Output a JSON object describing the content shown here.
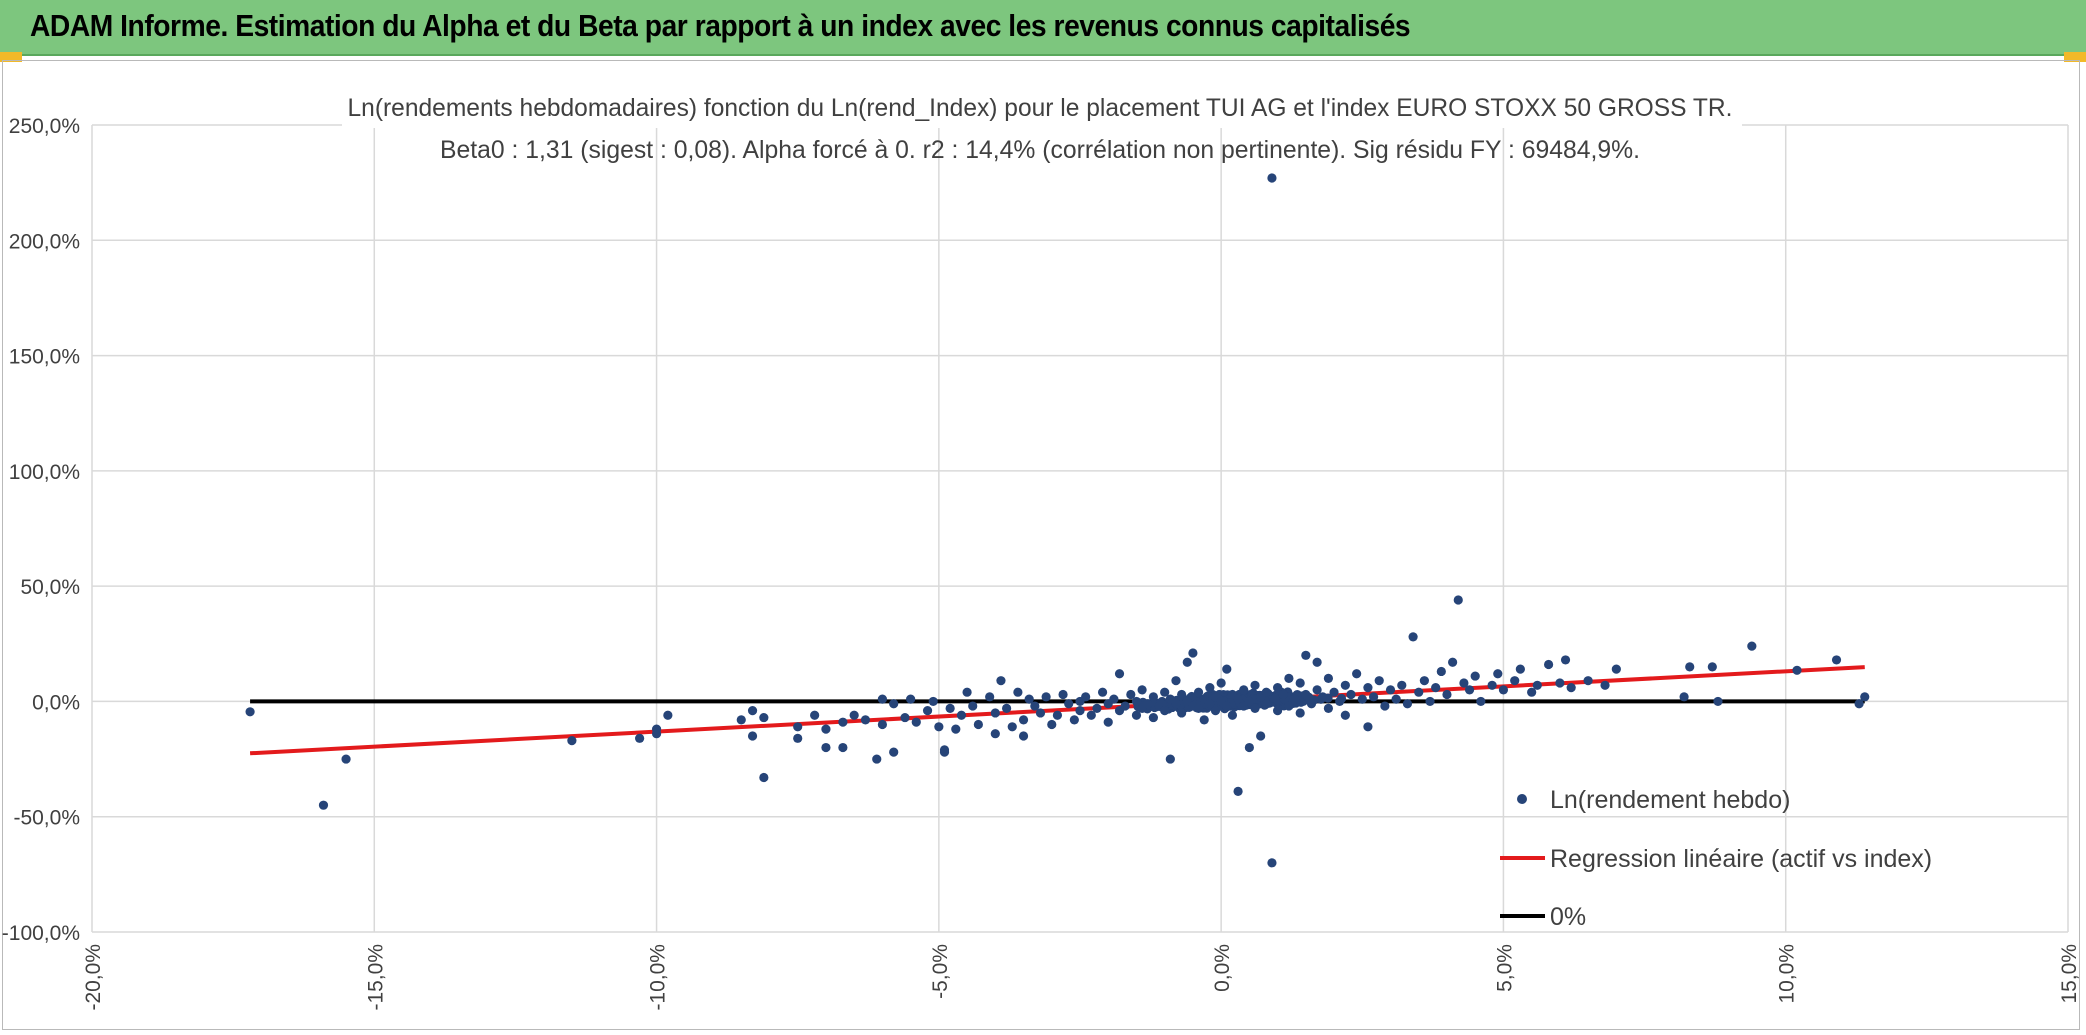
{
  "header": {
    "title": "ADAM Informe. Estimation du Alpha et du Beta par rapport à un index avec les revenus connus capitalisés"
  },
  "colors": {
    "banner": "#7dc67e",
    "points": "#264478",
    "regression": "#e31a1c",
    "zero_line": "#000000",
    "grid": "#d9d9d9",
    "corner_accent": "#f2b928"
  },
  "chart_data": {
    "type": "scatter",
    "title_line1": "Ln(rendements hebdomadaires) fonction du Ln(rend_Index) pour le placement TUI AG et l'index EURO STOXX 50 GROSS TR.",
    "title_line2": "Beta0 : 1,31 (sigest : 0,08). Alpha forcé à 0. r2 : 14,4% (corrélation non pertinente). Sig résidu FY : 69484,9%.",
    "xlabel": "",
    "ylabel": "",
    "xlim": [
      -20,
      15
    ],
    "ylim": [
      -100,
      250
    ],
    "x_ticks": [
      -20,
      -15,
      -10,
      -5,
      0,
      5,
      10,
      15
    ],
    "y_ticks": [
      -100,
      -50,
      0,
      50,
      100,
      150,
      200,
      250
    ],
    "x_tick_labels": [
      "-20,0%",
      "-15,0%",
      "-10,0%",
      "-5,0%",
      "0,0%",
      "5,0%",
      "10,0%",
      "15,0%"
    ],
    "y_tick_labels": [
      "-100,0%",
      "-50,0%",
      "0,0%",
      "50,0%",
      "100,0%",
      "150,0%",
      "200,0%",
      "250,0%"
    ],
    "grid": true,
    "legend_position": "bottom-right",
    "series": [
      {
        "name": "Ln(rendement hebdo)",
        "kind": "scatter",
        "points": [
          [
            -17.2,
            -4.5
          ],
          [
            -15.9,
            -45.0
          ],
          [
            -15.5,
            -25.0
          ],
          [
            -11.5,
            -17.0
          ],
          [
            -10.3,
            -16.0
          ],
          [
            -10.0,
            -14.0
          ],
          [
            -10.0,
            -12.0
          ],
          [
            -9.8,
            -6.0
          ],
          [
            -8.5,
            -8.0
          ],
          [
            -8.3,
            -4.0
          ],
          [
            -8.3,
            -15.0
          ],
          [
            -8.1,
            -7.0
          ],
          [
            -8.1,
            -33.0
          ],
          [
            -7.5,
            -11.0
          ],
          [
            -7.5,
            -16.0
          ],
          [
            -7.2,
            -6.0
          ],
          [
            -7.0,
            -20.0
          ],
          [
            -7.0,
            -12.0
          ],
          [
            -6.7,
            -9.0
          ],
          [
            -6.7,
            -20.0
          ],
          [
            -6.5,
            -6.0
          ],
          [
            -6.3,
            -8.0
          ],
          [
            -6.1,
            -25.0
          ],
          [
            -6.0,
            -10.0
          ],
          [
            -6.0,
            1.0
          ],
          [
            -5.8,
            -1.0
          ],
          [
            -5.8,
            -22.0
          ],
          [
            -5.6,
            -7.0
          ],
          [
            -5.5,
            1.0
          ],
          [
            -5.4,
            -9.0
          ],
          [
            -5.2,
            -4.0
          ],
          [
            -5.1,
            0.0
          ],
          [
            -5.0,
            -11.0
          ],
          [
            -4.9,
            -21.0
          ],
          [
            -4.9,
            -22.0
          ],
          [
            -4.8,
            -3.0
          ],
          [
            -4.7,
            -12.0
          ],
          [
            -4.6,
            -6.0
          ],
          [
            -4.5,
            4.0
          ],
          [
            -4.4,
            -2.0
          ],
          [
            -4.3,
            -10.0
          ],
          [
            -4.1,
            2.0
          ],
          [
            -4.0,
            -14.0
          ],
          [
            -4.0,
            -5.0
          ],
          [
            -3.9,
            9.0
          ],
          [
            -3.8,
            -3.0
          ],
          [
            -3.7,
            -11.0
          ],
          [
            -3.6,
            4.0
          ],
          [
            -3.5,
            -15.0
          ],
          [
            -3.5,
            -8.0
          ],
          [
            -3.4,
            1.0
          ],
          [
            -3.3,
            -2.0
          ],
          [
            -3.2,
            -5.0
          ],
          [
            -3.1,
            2.0
          ],
          [
            -3.0,
            -10.0
          ],
          [
            -2.9,
            -6.0
          ],
          [
            -2.8,
            3.0
          ],
          [
            -2.7,
            -1.0
          ],
          [
            -2.6,
            -8.0
          ],
          [
            -2.5,
            0.0
          ],
          [
            -2.5,
            -4.0
          ],
          [
            -2.4,
            2.0
          ],
          [
            -2.3,
            -6.0
          ],
          [
            -2.2,
            -3.0
          ],
          [
            -2.1,
            4.0
          ],
          [
            -2.0,
            -1.0
          ],
          [
            -2.0,
            -9.0
          ],
          [
            -1.9,
            1.0
          ],
          [
            -1.8,
            -4.0
          ],
          [
            -1.8,
            12.0
          ],
          [
            -1.7,
            -2.0
          ],
          [
            -1.6,
            3.0
          ],
          [
            -1.5,
            -6.0
          ],
          [
            -1.5,
            0.0
          ],
          [
            -1.4,
            -3.0
          ],
          [
            -1.4,
            5.0
          ],
          [
            -1.3,
            -1.0
          ],
          [
            -1.2,
            2.0
          ],
          [
            -1.2,
            -7.0
          ],
          [
            -1.1,
            -2.0
          ],
          [
            -1.0,
            4.0
          ],
          [
            -1.0,
            -4.0
          ],
          [
            -0.9,
            1.0
          ],
          [
            -0.9,
            -25.0
          ],
          [
            -0.8,
            -1.0
          ],
          [
            -0.8,
            9.0
          ],
          [
            -0.7,
            3.0
          ],
          [
            -0.7,
            -5.0
          ],
          [
            -0.6,
            0.0
          ],
          [
            -0.6,
            17.0
          ],
          [
            -0.5,
            -2.0
          ],
          [
            -0.5,
            21.0
          ],
          [
            -0.4,
            4.0
          ],
          [
            -0.4,
            -3.0
          ],
          [
            -0.3,
            1.0
          ],
          [
            -0.3,
            -8.0
          ],
          [
            -0.2,
            6.0
          ],
          [
            -0.2,
            -1.0
          ],
          [
            -0.1,
            2.0
          ],
          [
            -0.1,
            -4.0
          ],
          [
            0.0,
            0.0
          ],
          [
            0.0,
            8.0
          ],
          [
            0.1,
            -2.0
          ],
          [
            0.1,
            14.0
          ],
          [
            0.2,
            3.0
          ],
          [
            0.2,
            -6.0
          ],
          [
            0.3,
            1.0
          ],
          [
            0.3,
            -39.0
          ],
          [
            0.4,
            5.0
          ],
          [
            0.4,
            -2.0
          ],
          [
            0.5,
            0.0
          ],
          [
            0.5,
            -20.0
          ],
          [
            0.6,
            7.0
          ],
          [
            0.6,
            -3.0
          ],
          [
            0.7,
            2.0
          ],
          [
            0.7,
            -15.0
          ],
          [
            0.8,
            4.0
          ],
          [
            0.8,
            -1.0
          ],
          [
            0.9,
            227.0
          ],
          [
            0.9,
            -70.0
          ],
          [
            1.0,
            6.0
          ],
          [
            1.0,
            -4.0
          ],
          [
            1.1,
            3.0
          ],
          [
            1.2,
            -2.0
          ],
          [
            1.2,
            10.0
          ],
          [
            1.3,
            1.0
          ],
          [
            1.4,
            8.0
          ],
          [
            1.4,
            -5.0
          ],
          [
            1.5,
            20.0
          ],
          [
            1.5,
            3.0
          ],
          [
            1.6,
            -1.0
          ],
          [
            1.7,
            5.0
          ],
          [
            1.7,
            17.0
          ],
          [
            1.8,
            2.0
          ],
          [
            1.9,
            -3.0
          ],
          [
            1.9,
            10.0
          ],
          [
            2.0,
            4.0
          ],
          [
            2.1,
            0.0
          ],
          [
            2.2,
            7.0
          ],
          [
            2.2,
            -6.0
          ],
          [
            2.3,
            3.0
          ],
          [
            2.4,
            12.0
          ],
          [
            2.5,
            1.0
          ],
          [
            2.6,
            6.0
          ],
          [
            2.6,
            -11.0
          ],
          [
            2.7,
            2.0
          ],
          [
            2.8,
            9.0
          ],
          [
            2.9,
            -2.0
          ],
          [
            3.0,
            5.0
          ],
          [
            3.1,
            1.0
          ],
          [
            3.2,
            7.0
          ],
          [
            3.3,
            -1.0
          ],
          [
            3.4,
            28.0
          ],
          [
            3.5,
            4.0
          ],
          [
            3.6,
            9.0
          ],
          [
            3.7,
            0.0
          ],
          [
            3.8,
            6.0
          ],
          [
            3.9,
            13.0
          ],
          [
            4.0,
            3.0
          ],
          [
            4.1,
            17.0
          ],
          [
            4.2,
            44.0
          ],
          [
            4.3,
            8.0
          ],
          [
            4.4,
            5.0
          ],
          [
            4.5,
            11.0
          ],
          [
            4.6,
            0.0
          ],
          [
            4.8,
            7.0
          ],
          [
            4.9,
            12.0
          ],
          [
            5.0,
            5.0
          ],
          [
            5.2,
            9.0
          ],
          [
            5.3,
            14.0
          ],
          [
            5.5,
            4.0
          ],
          [
            5.6,
            7.0
          ],
          [
            5.8,
            16.0
          ],
          [
            6.0,
            8.0
          ],
          [
            6.1,
            18.0
          ],
          [
            6.2,
            6.0
          ],
          [
            6.5,
            9.0
          ],
          [
            6.8,
            7.0
          ],
          [
            7.0,
            14.0
          ],
          [
            8.2,
            2.0
          ],
          [
            8.3,
            15.0
          ],
          [
            8.7,
            15.0
          ],
          [
            8.8,
            0.0
          ],
          [
            9.4,
            24.0
          ],
          [
            10.2,
            13.5
          ],
          [
            10.9,
            18.0
          ],
          [
            11.3,
            -1.0
          ],
          [
            11.4,
            2.0
          ]
        ]
      },
      {
        "name": "Regression linéaire (actif vs index)",
        "kind": "line",
        "x": [
          -17.2,
          11.4
        ],
        "y": [
          -22.5,
          14.9
        ]
      },
      {
        "name": "0%",
        "kind": "line",
        "x": [
          -17.2,
          11.4
        ],
        "y": [
          0,
          0
        ]
      }
    ]
  }
}
